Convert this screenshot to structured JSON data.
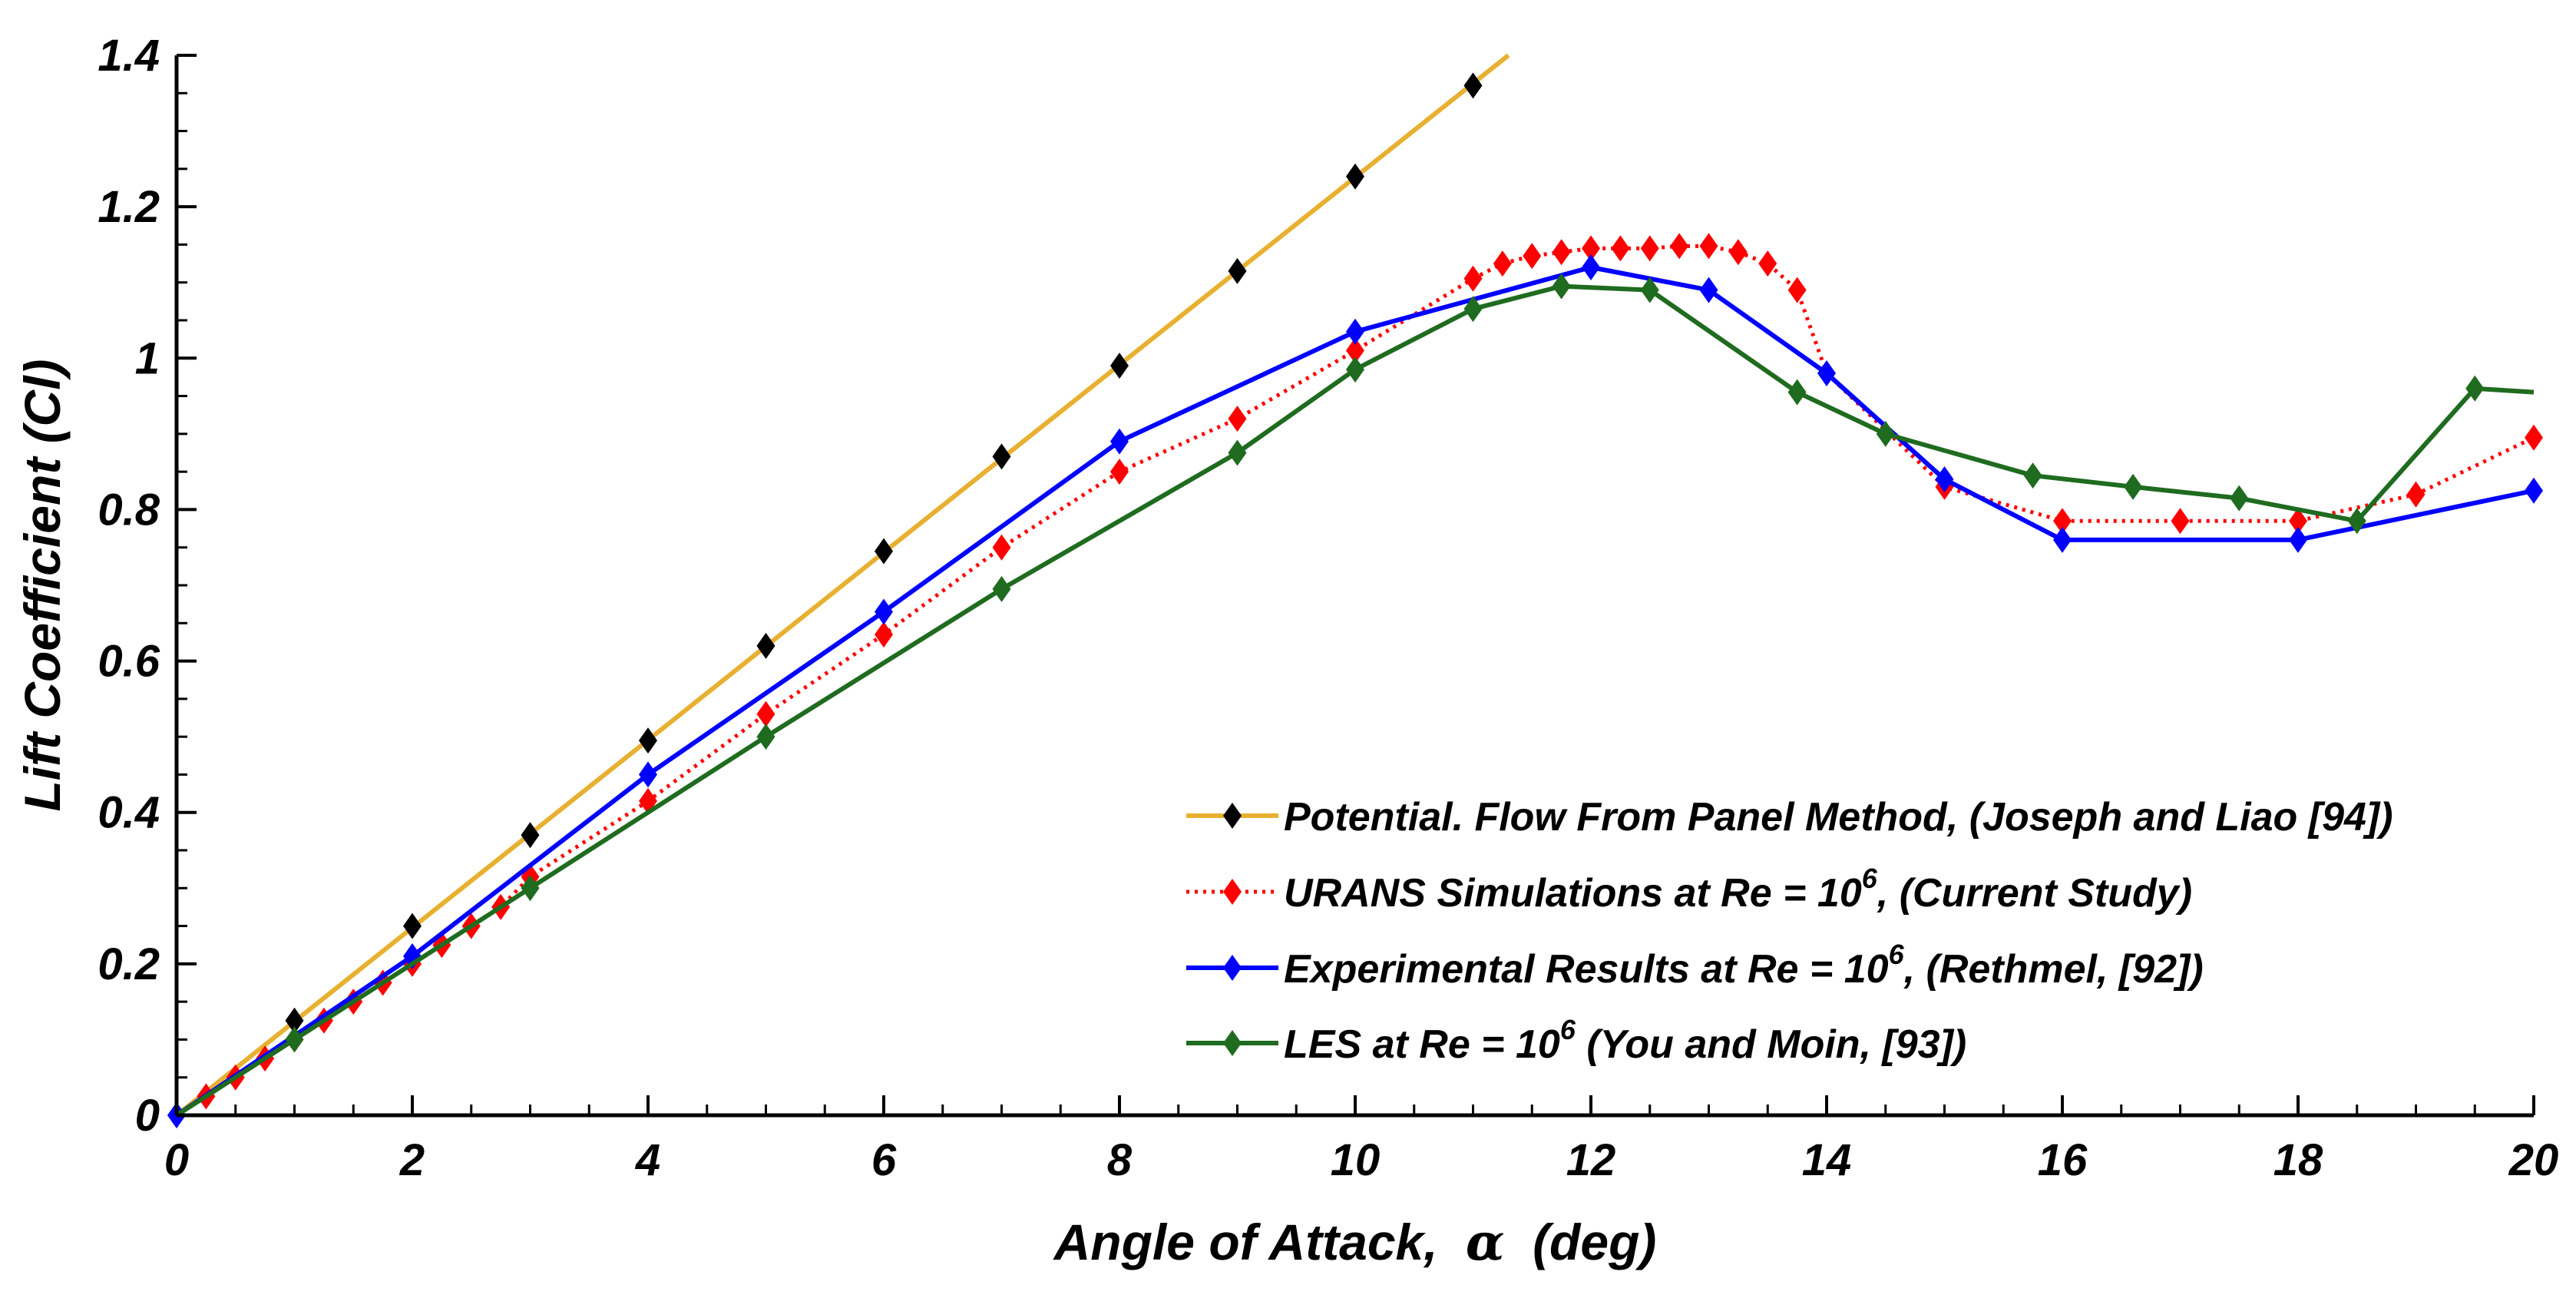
{
  "chart_data": {
    "type": "line",
    "title": "",
    "xlabel_prefix": "Angle of Attack,",
    "xlabel_symbol": "α",
    "xlabel_suffix": "(deg)",
    "ylabel": "Lift Coefficient (Cl)",
    "xlim": [
      0,
      20
    ],
    "ylim": [
      0,
      1.4
    ],
    "xticks": [
      "0",
      "2",
      "4",
      "6",
      "8",
      "10",
      "12",
      "14",
      "16",
      "18",
      "20"
    ],
    "yticks": [
      "0",
      "0.2",
      "0.4",
      "0.6",
      "0.8",
      "1",
      "1.2",
      "1.4"
    ],
    "grid": false,
    "legend_position": "bottom-right",
    "series": [
      {
        "name": "Potential. Flow From Panel Method, (Joseph and Liao [94])",
        "legend_main": "Potential. Flow From Panel Method, (Joseph and Liao [94])",
        "line_color": "#e8b030",
        "marker_color": "#000000",
        "dashed": false,
        "line": {
          "x": [
            0,
            11.3
          ],
          "y": [
            0,
            1.4
          ]
        },
        "markers": {
          "x": [
            0,
            1,
            2,
            3,
            4,
            5,
            6,
            7,
            8,
            9,
            10,
            11
          ],
          "y": [
            0,
            0.125,
            0.25,
            0.37,
            0.495,
            0.62,
            0.745,
            0.87,
            0.99,
            1.115,
            1.24,
            1.36
          ]
        }
      },
      {
        "name": "URANS Simulations at Re = 10^6, (Current Study)",
        "legend_main": "URANS Simulations at Re = 10",
        "legend_sup": "6",
        "legend_tail": ", (Current Study)",
        "line_color": "#ff0000",
        "marker_color": "#ff0000",
        "dashed": true,
        "line": {
          "x": [
            0,
            0.25,
            0.5,
            0.75,
            1,
            1.25,
            1.5,
            1.75,
            2,
            2.25,
            2.5,
            2.75,
            3,
            4,
            5,
            6,
            7,
            8,
            9,
            10,
            11,
            11.25,
            11.5,
            11.75,
            12,
            12.25,
            12.5,
            12.75,
            13,
            13.25,
            13.5,
            13.75,
            14,
            15,
            16,
            17,
            18,
            19,
            20
          ],
          "y": [
            0,
            0.025,
            0.05,
            0.075,
            0.1,
            0.125,
            0.15,
            0.175,
            0.2,
            0.225,
            0.25,
            0.275,
            0.315,
            0.415,
            0.53,
            0.635,
            0.75,
            0.85,
            0.92,
            1.01,
            1.105,
            1.125,
            1.135,
            1.14,
            1.145,
            1.145,
            1.145,
            1.148,
            1.148,
            1.14,
            1.125,
            1.09,
            0.98,
            0.83,
            0.785,
            0.785,
            0.785,
            0.82,
            0.895
          ]
        },
        "markers": {
          "x": [
            0.25,
            0.5,
            0.75,
            1,
            1.25,
            1.5,
            1.75,
            2,
            2.25,
            2.5,
            2.75,
            3,
            4,
            5,
            6,
            7,
            8,
            9,
            10,
            11,
            11.25,
            11.5,
            11.75,
            12,
            12.25,
            12.5,
            12.75,
            13,
            13.25,
            13.5,
            13.75,
            15,
            16,
            17,
            18,
            19,
            20
          ],
          "y": [
            0.025,
            0.05,
            0.075,
            0.1,
            0.125,
            0.15,
            0.175,
            0.2,
            0.225,
            0.25,
            0.275,
            0.315,
            0.415,
            0.53,
            0.635,
            0.75,
            0.85,
            0.92,
            1.01,
            1.105,
            1.125,
            1.135,
            1.14,
            1.145,
            1.145,
            1.145,
            1.148,
            1.148,
            1.14,
            1.125,
            1.09,
            0.83,
            0.785,
            0.785,
            0.785,
            0.82,
            0.895
          ]
        }
      },
      {
        "name": "Experimental Results at Re = 10^6, (Rethmel, [92])",
        "legend_main": "Experimental Results at Re = 10",
        "legend_sup": "6",
        "legend_tail": ", (Rethmel, [92])",
        "line_color": "#0000ff",
        "marker_color": "#0000ff",
        "dashed": false,
        "line": {
          "x": [
            0,
            2,
            4,
            6,
            8,
            10,
            12,
            13,
            14,
            15,
            16,
            18,
            20
          ],
          "y": [
            0,
            0.21,
            0.45,
            0.665,
            0.89,
            1.035,
            1.12,
            1.09,
            0.98,
            0.84,
            0.76,
            0.76,
            0.825
          ]
        },
        "markers": {
          "x": [
            0,
            2,
            4,
            6,
            8,
            10,
            12,
            13,
            14,
            15,
            16,
            18,
            20
          ],
          "y": [
            0,
            0.21,
            0.45,
            0.665,
            0.89,
            1.035,
            1.12,
            1.09,
            0.98,
            0.84,
            0.76,
            0.76,
            0.825
          ]
        }
      },
      {
        "name": "LES at Re = 10^6 (You and Moin, [93])",
        "legend_main": "LES at Re = 10",
        "legend_sup": "6",
        "legend_tail": " (You and Moin, [93])",
        "line_color": "#1f6b1f",
        "marker_color": "#1f6b1f",
        "dashed": false,
        "line": {
          "x": [
            0,
            1,
            3,
            5,
            7,
            9,
            10,
            11,
            11.75,
            12.5,
            13.75,
            14.5,
            15.75,
            16.6,
            17.5,
            18.5,
            19.5,
            20
          ],
          "y": [
            0,
            0.1,
            0.3,
            0.5,
            0.695,
            0.875,
            0.985,
            1.065,
            1.095,
            1.09,
            0.955,
            0.9,
            0.845,
            0.83,
            0.815,
            0.785,
            0.96,
            0.955
          ]
        },
        "markers": {
          "x": [
            1,
            3,
            5,
            7,
            9,
            10,
            11,
            11.75,
            12.5,
            13.75,
            14.5,
            15.75,
            16.6,
            17.5,
            18.5,
            19.5
          ],
          "y": [
            0.1,
            0.3,
            0.5,
            0.695,
            0.875,
            0.985,
            1.065,
            1.095,
            1.09,
            0.955,
            0.9,
            0.845,
            0.83,
            0.815,
            0.785,
            0.96
          ]
        }
      }
    ]
  }
}
